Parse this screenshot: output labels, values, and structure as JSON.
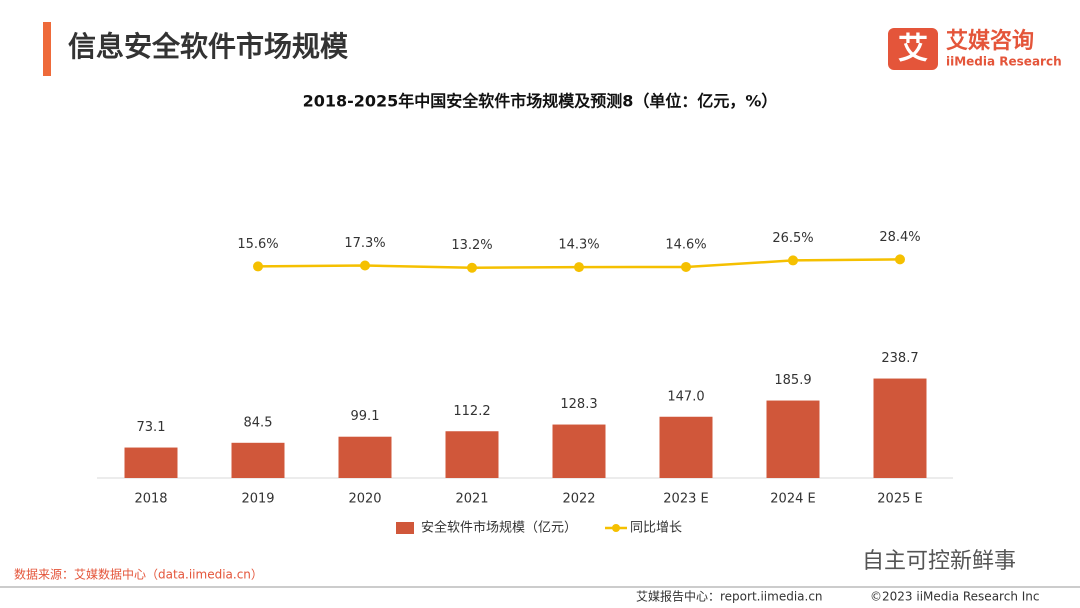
{
  "header": {
    "title": "信息安全软件市场规模",
    "logo_mark": "艾",
    "logo_name": "艾媒咨询",
    "logo_sub": "iiMedia Research"
  },
  "chart_data": {
    "type": "bar_line",
    "title": "2018-2025年中国安全软件市场规模及预测8（单位：亿元，%）",
    "categories": [
      "2018",
      "2019",
      "2020",
      "2021",
      "2022",
      "2023 E",
      "2024 E",
      "2025 E"
    ],
    "series": [
      {
        "name": "安全软件市场规模（亿元）",
        "type": "bar",
        "color": "#d0573a",
        "values": [
          73.1,
          84.5,
          99.1,
          112.2,
          128.3,
          147.0,
          185.9,
          238.7
        ],
        "value_labels": [
          "73.1",
          "84.5",
          "99.1",
          "112.2",
          "128.3",
          "147.0",
          "185.9",
          "238.7"
        ]
      },
      {
        "name": "同比增长",
        "type": "line",
        "axis": "y2",
        "color": "#f5c000",
        "values": [
          null,
          15.6,
          17.3,
          13.2,
          14.3,
          14.6,
          26.5,
          28.4
        ],
        "value_labels": [
          null,
          "15.6%",
          "17.3%",
          "13.2%",
          "14.3%",
          "14.6%",
          "26.5%",
          "28.4%"
        ]
      }
    ],
    "ylim": [
      0,
      240
    ],
    "y2lim": [
      0,
      100
    ]
  },
  "footer": {
    "source": "数据来源：艾媒数据中心（data.iimedia.cn）",
    "watermark": "自主可控新鲜事",
    "report": "艾媒报告中心：report.iimedia.cn",
    "copyright": "©2023  iiMedia Research  Inc"
  }
}
